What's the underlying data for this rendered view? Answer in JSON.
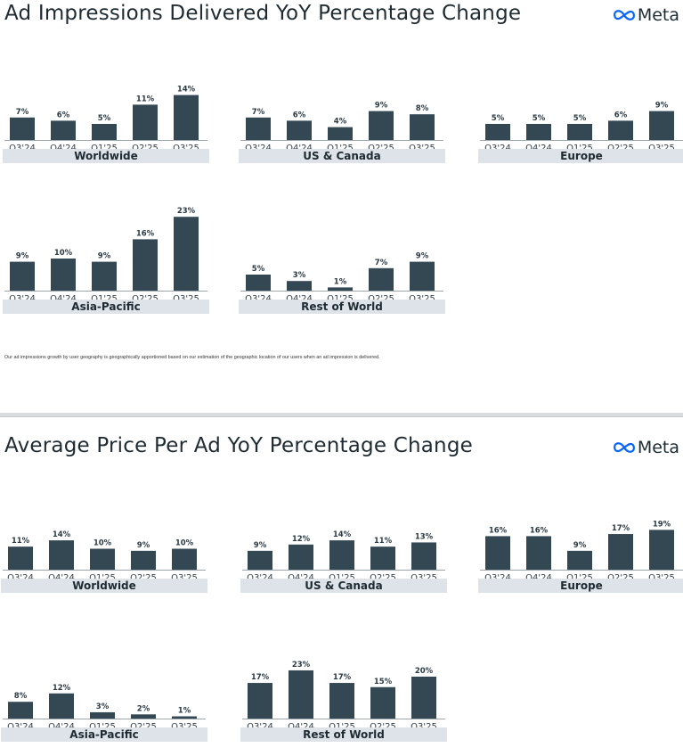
{
  "logo_text": "Meta",
  "colors": {
    "bar": "#344854",
    "label_band": "#dde3e8",
    "logo_blue": "#0866ff"
  },
  "footnote": "Our ad impressions growth by user geography is geographically apportioned based on our estimation of the geographic location of our users when an ad impression is delivered.",
  "slides": [
    {
      "title": "Ad Impressions Delivered YoY Percentage Change",
      "chart_data": [
        {
          "type": "bar",
          "title": "Worldwide",
          "categories": [
            "Q3'24",
            "Q4'24",
            "Q1'25",
            "Q2'25",
            "Q3'25"
          ],
          "values": [
            7,
            6,
            5,
            11,
            14
          ],
          "value_labels": [
            "7%",
            "6%",
            "5%",
            "11%",
            "14%"
          ]
        },
        {
          "type": "bar",
          "title": "US & Canada",
          "categories": [
            "Q3'24",
            "Q4'24",
            "Q1'25",
            "Q2'25",
            "Q3'25"
          ],
          "values": [
            7,
            6,
            4,
            9,
            8
          ],
          "value_labels": [
            "7%",
            "6%",
            "4%",
            "9%",
            "8%"
          ]
        },
        {
          "type": "bar",
          "title": "Europe",
          "categories": [
            "Q3'24",
            "Q4'24",
            "Q1'25",
            "Q2'25",
            "Q3'25"
          ],
          "values": [
            5,
            5,
            5,
            6,
            9
          ],
          "value_labels": [
            "5%",
            "5%",
            "5%",
            "6%",
            "9%"
          ]
        },
        {
          "type": "bar",
          "title": "Asia-Pacific",
          "categories": [
            "Q3'24",
            "Q4'24",
            "Q1'25",
            "Q2'25",
            "Q3'25"
          ],
          "values": [
            9,
            10,
            9,
            16,
            23
          ],
          "value_labels": [
            "9%",
            "10%",
            "9%",
            "16%",
            "23%"
          ]
        },
        {
          "type": "bar",
          "title": "Rest of World",
          "categories": [
            "Q3'24",
            "Q4'24",
            "Q1'25",
            "Q2'25",
            "Q3'25"
          ],
          "values": [
            5,
            3,
            1,
            7,
            9
          ],
          "value_labels": [
            "5%",
            "3%",
            "1%",
            "7%",
            "9%"
          ]
        }
      ]
    },
    {
      "title": "Average Price Per Ad YoY Percentage Change",
      "chart_data": [
        {
          "type": "bar",
          "title": "Worldwide",
          "categories": [
            "Q3'24",
            "Q4'24",
            "Q1'25",
            "Q2'25",
            "Q3'25"
          ],
          "values": [
            11,
            14,
            10,
            9,
            10
          ],
          "value_labels": [
            "11%",
            "14%",
            "10%",
            "9%",
            "10%"
          ]
        },
        {
          "type": "bar",
          "title": "US & Canada",
          "categories": [
            "Q3'24",
            "Q4'24",
            "Q1'25",
            "Q2'25",
            "Q3'25"
          ],
          "values": [
            9,
            12,
            14,
            11,
            13
          ],
          "value_labels": [
            "9%",
            "12%",
            "14%",
            "11%",
            "13%"
          ]
        },
        {
          "type": "bar",
          "title": "Europe",
          "categories": [
            "Q3'24",
            "Q4'24",
            "Q1'25",
            "Q2'25",
            "Q3'25"
          ],
          "values": [
            16,
            16,
            9,
            17,
            19
          ],
          "value_labels": [
            "16%",
            "16%",
            "9%",
            "17%",
            "19%"
          ]
        },
        {
          "type": "bar",
          "title": "Asia-Pacific",
          "categories": [
            "Q3'24",
            "Q4'24",
            "Q1'25",
            "Q2'25",
            "Q3'25"
          ],
          "values": [
            8,
            12,
            3,
            2,
            1
          ],
          "value_labels": [
            "8%",
            "12%",
            "3%",
            "2%",
            "1%"
          ]
        },
        {
          "type": "bar",
          "title": "Rest of World",
          "categories": [
            "Q3'24",
            "Q4'24",
            "Q1'25",
            "Q2'25",
            "Q3'25"
          ],
          "values": [
            17,
            23,
            17,
            15,
            20
          ],
          "value_labels": [
            "17%",
            "23%",
            "17%",
            "15%",
            "20%"
          ]
        }
      ]
    }
  ]
}
